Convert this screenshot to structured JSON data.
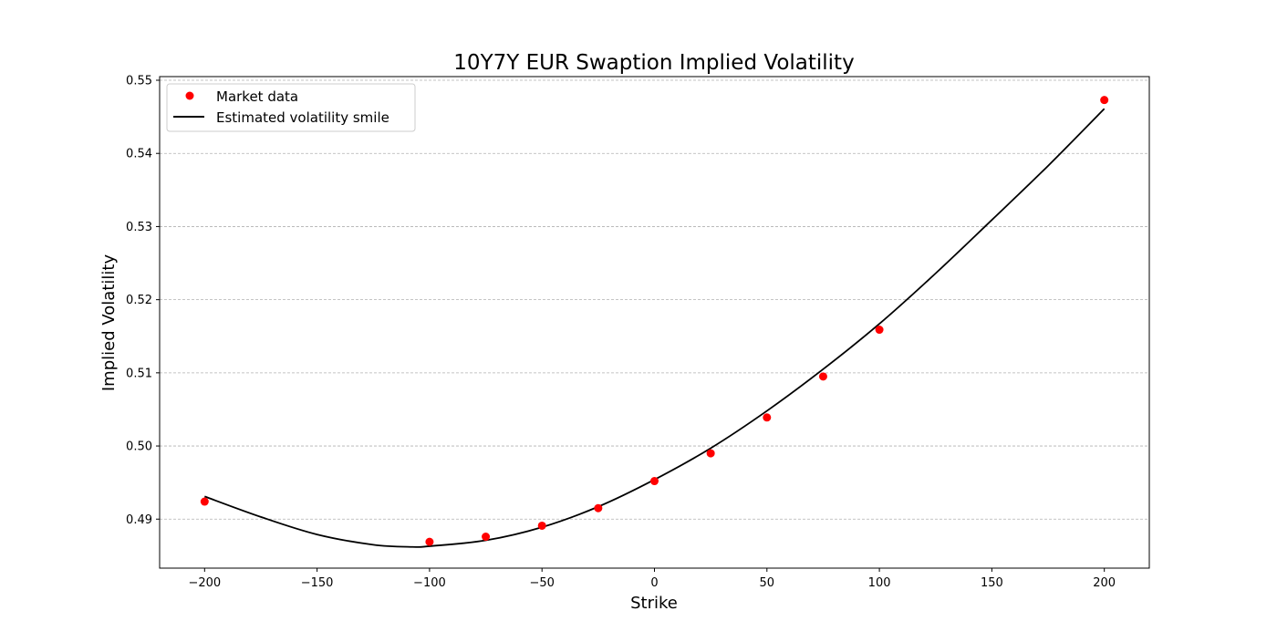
{
  "chart_data": {
    "type": "scatter",
    "title": "10Y7Y EUR Swaption Implied Volatility",
    "xlabel": "Strike",
    "ylabel": "Implied Volatility",
    "xlim": [
      -220,
      220
    ],
    "ylim": [
      0.4833,
      0.5505
    ],
    "x_ticks": [
      -200,
      -150,
      -100,
      -50,
      0,
      50,
      100,
      150,
      200
    ],
    "x_tick_labels": [
      "−200",
      "−150",
      "−100",
      "−50",
      "0",
      "50",
      "100",
      "150",
      "200"
    ],
    "y_ticks": [
      0.49,
      0.5,
      0.51,
      0.52,
      0.53,
      0.54,
      0.55
    ],
    "y_tick_labels": [
      "0.49",
      "0.50",
      "0.51",
      "0.52",
      "0.53",
      "0.54",
      "0.55"
    ],
    "grid": "horizontal dashed",
    "legend_position": "upper-left",
    "series": [
      {
        "name": "Market data",
        "kind": "scatter",
        "color": "#ff0000",
        "x": [
          -200,
          -100,
          -75,
          -50,
          -25,
          0,
          25,
          50,
          75,
          100,
          200
        ],
        "y": [
          0.4924,
          0.4869,
          0.4876,
          0.4891,
          0.4915,
          0.4952,
          0.499,
          0.5039,
          0.5095,
          0.5159,
          0.5473
        ]
      },
      {
        "name": "Estimated volatility smile",
        "kind": "line",
        "color": "#000000",
        "x": [
          -200,
          -175,
          -150,
          -125,
          -107.5,
          -100,
          -75,
          -50,
          -25,
          0,
          25,
          50,
          75,
          100,
          125,
          150,
          175,
          200
        ],
        "y": [
          0.4931,
          0.4903,
          0.4879,
          0.4865,
          0.4862,
          0.4863,
          0.4871,
          0.4889,
          0.4917,
          0.4954,
          0.4997,
          0.5048,
          0.5105,
          0.5167,
          0.5236,
          0.5309,
          0.5383,
          0.5461
        ]
      }
    ]
  }
}
